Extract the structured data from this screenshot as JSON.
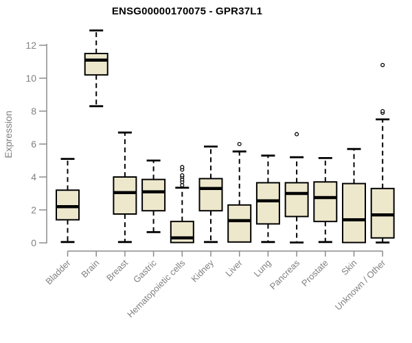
{
  "chart_data": {
    "type": "box",
    "title": "ENSG00000170075 - GPR37L1",
    "ylabel": "Expression",
    "xlabel": "",
    "ylim": [
      0,
      13
    ],
    "yticks": [
      0,
      2,
      4,
      6,
      8,
      10,
      12
    ],
    "grid": false,
    "legend": false,
    "categories": [
      "Bladder",
      "Brain",
      "Breast",
      "Gastric",
      "Hematopoietic cells",
      "Kidney",
      "Liver",
      "Lung",
      "Pancreas",
      "Prostate",
      "Skin",
      "Unknown / Other"
    ],
    "series": [
      {
        "name": "Bladder",
        "whisker_low": 0.05,
        "q1": 1.4,
        "median": 2.2,
        "q3": 3.2,
        "whisker_high": 5.1,
        "outliers": []
      },
      {
        "name": "Brain",
        "whisker_low": 8.3,
        "q1": 10.2,
        "median": 11.1,
        "q3": 11.5,
        "whisker_high": 12.9,
        "outliers": []
      },
      {
        "name": "Breast",
        "whisker_low": 0.05,
        "q1": 1.75,
        "median": 3.05,
        "q3": 4.0,
        "whisker_high": 6.7,
        "outliers": []
      },
      {
        "name": "Gastric",
        "whisker_low": 0.65,
        "q1": 1.95,
        "median": 3.1,
        "q3": 3.85,
        "whisker_high": 5.0,
        "outliers": []
      },
      {
        "name": "Hematopoietic cells",
        "whisker_low": 0.02,
        "q1": 0.02,
        "median": 0.3,
        "q3": 1.3,
        "whisker_high": 3.35,
        "outliers": [
          3.5,
          3.7,
          3.85,
          4.0,
          4.1,
          4.45,
          4.6
        ]
      },
      {
        "name": "Kidney",
        "whisker_low": 0.05,
        "q1": 1.95,
        "median": 3.3,
        "q3": 3.9,
        "whisker_high": 5.85,
        "outliers": []
      },
      {
        "name": "Liver",
        "whisker_low": 0.05,
        "q1": 0.05,
        "median": 1.35,
        "q3": 2.3,
        "whisker_high": 5.55,
        "outliers": [
          6.0
        ]
      },
      {
        "name": "Lung",
        "whisker_low": 0.05,
        "q1": 1.15,
        "median": 2.55,
        "q3": 3.65,
        "whisker_high": 5.3,
        "outliers": []
      },
      {
        "name": "Pancreas",
        "whisker_low": 0.02,
        "q1": 1.6,
        "median": 3.0,
        "q3": 3.65,
        "whisker_high": 5.2,
        "outliers": [
          6.6
        ]
      },
      {
        "name": "Prostate",
        "whisker_low": 0.05,
        "q1": 1.3,
        "median": 2.75,
        "q3": 3.7,
        "whisker_high": 5.15,
        "outliers": []
      },
      {
        "name": "Skin",
        "whisker_low": 0.02,
        "q1": 0.02,
        "median": 1.4,
        "q3": 3.6,
        "whisker_high": 5.7,
        "outliers": []
      },
      {
        "name": "Unknown / Other",
        "whisker_low": 0.02,
        "q1": 0.3,
        "median": 1.7,
        "q3": 3.3,
        "whisker_high": 7.5,
        "outliers": [
          7.9,
          8.0,
          10.8
        ]
      }
    ]
  },
  "colors": {
    "box_fill": "#ede8cc",
    "box_border": "#000000",
    "median": "#000000",
    "whisker": "#000000",
    "outlier_stroke": "#000000",
    "outlier_fill": "#ffffff",
    "axis": "#8a8a8a",
    "tick_text": "#808080",
    "title_text": "#000000",
    "background": "#ffffff"
  }
}
